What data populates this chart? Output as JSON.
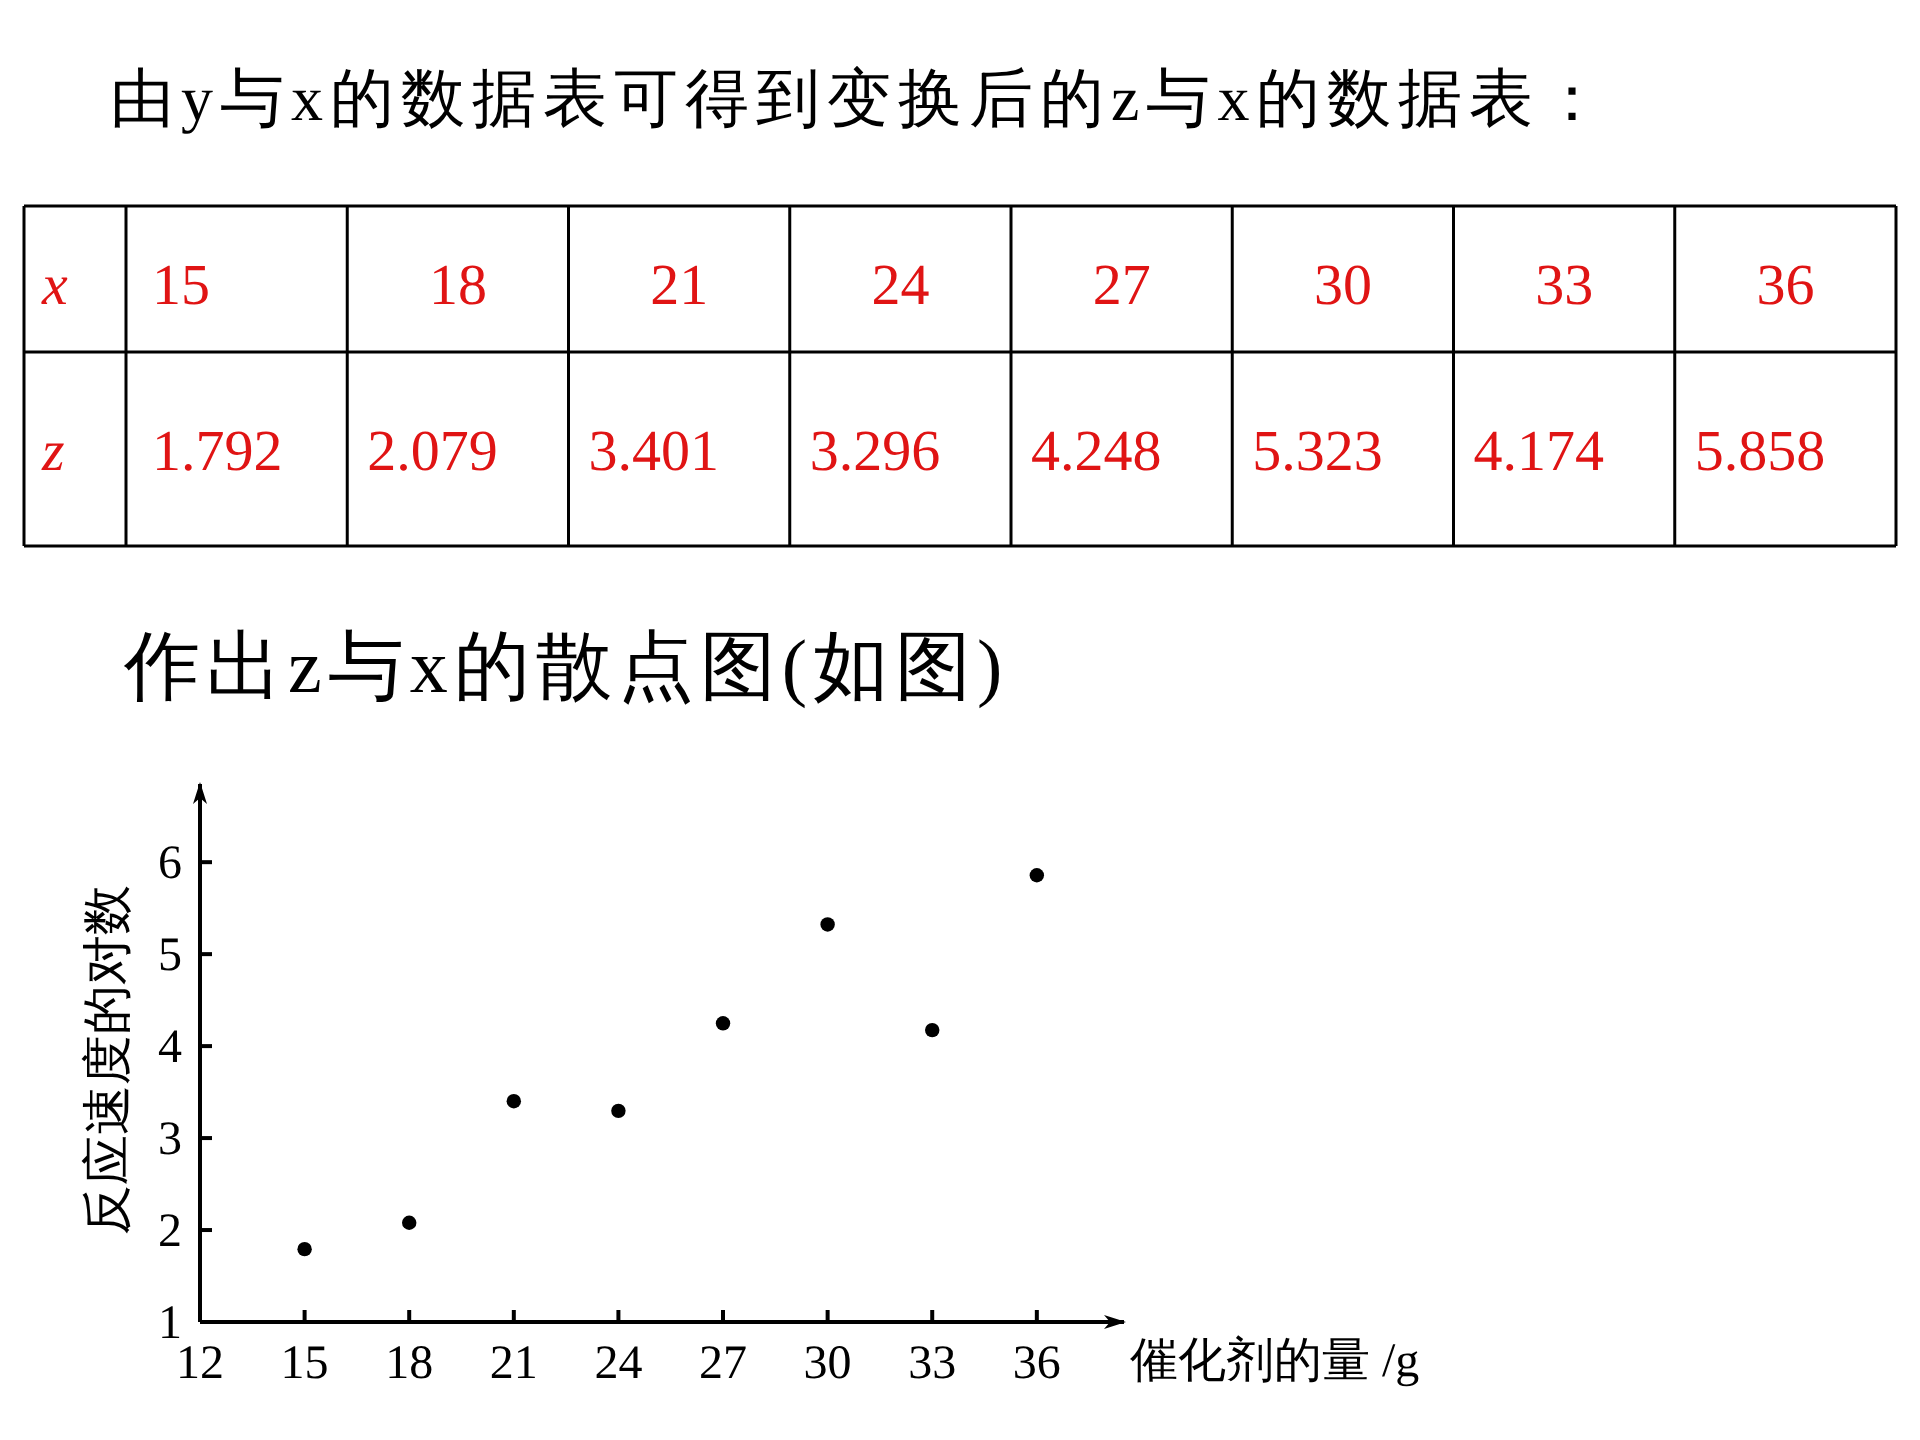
{
  "chart_data": [
    {
      "type": "other",
      "title": "由y与x的数据表可得到变换后的z与x的数据表：",
      "xlabel": "x",
      "categories": [
        "15",
        "18",
        "21",
        "24",
        "27",
        "30",
        "33",
        "36"
      ],
      "series": [
        {
          "name": "z",
          "color": "#e01414",
          "values": [
            1.792,
            2.079,
            3.401,
            3.296,
            4.248,
            5.323,
            4.174,
            5.858
          ]
        }
      ],
      "data_labels": true
    },
    {
      "type": "scatter",
      "title": "作出z与x的散点图(如图)",
      "xlabel": "催化剂的量 /g",
      "ylabel": "反应速度的对数",
      "x": [
        15,
        18,
        21,
        24,
        27,
        30,
        33,
        36
      ],
      "values": [
        1.792,
        2.079,
        3.401,
        3.296,
        4.248,
        5.323,
        4.174,
        5.858
      ],
      "color": "#000000",
      "marker": "circle",
      "xlim": [
        12,
        38.5
      ],
      "xticks": [
        12,
        15,
        18,
        21,
        24,
        27,
        30,
        33,
        36
      ],
      "ylim": [
        1,
        6.85
      ],
      "yticks": [
        1,
        2,
        3,
        4,
        5,
        6
      ]
    }
  ]
}
